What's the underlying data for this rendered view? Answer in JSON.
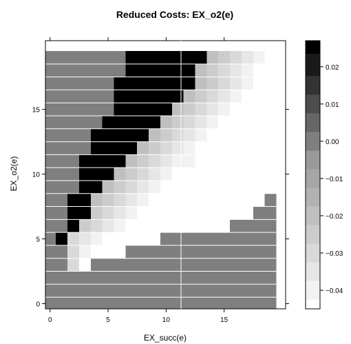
{
  "chart_data": {
    "type": "heatmap",
    "title": "Reduced Costs: EX_o2(e)",
    "xlabel": "EX_succ(e)",
    "ylabel": "EX_o2(e)",
    "xlim": [
      -0.4,
      20.3
    ],
    "ylim": [
      -0.4,
      20.3
    ],
    "x_ticks": [
      0,
      5,
      10,
      15
    ],
    "y_ticks": [
      0,
      5,
      10,
      15
    ],
    "colorbar": {
      "range": [
        -0.045,
        0.027
      ],
      "levels": [
        -0.045,
        -0.04,
        -0.035,
        -0.03,
        -0.025,
        -0.02,
        -0.015,
        -0.01,
        -0.005,
        0.0,
        0.005,
        0.01,
        0.015,
        0.02,
        0.027
      ],
      "colors": [
        "#ffffff",
        "#f2f2f2",
        "#e6e6e6",
        "#d9d9d9",
        "#cccccc",
        "#bfbfbf",
        "#b2b2b2",
        "#a6a6a6",
        "#999999",
        "#7f7f7f",
        "#666666",
        "#4d4d4d",
        "#333333",
        "#1a1a1a",
        "#000000"
      ],
      "tick_values": [
        0.02,
        0.01,
        0.0,
        -0.01,
        -0.02,
        -0.03,
        -0.04
      ],
      "tick_labels": [
        "0.02",
        "0.01",
        "0.00",
        "−0.01",
        "−0.02",
        "−0.03",
        "−0.04"
      ]
    },
    "grid": false,
    "cell_values": [
      [
        0.0,
        0.0,
        0.0,
        0.0,
        0.0,
        0.0,
        0.0,
        0.0,
        0.0,
        0.0,
        0.0,
        0.0,
        0.0,
        0.0,
        0.0,
        0.0,
        0.0,
        0.0,
        0.0,
        0.0
      ],
      [
        0.0,
        0.0,
        0.0,
        0.0,
        0.0,
        0.0,
        0.0,
        0.0,
        0.0,
        0.0,
        0.0,
        0.0,
        0.0,
        0.0,
        0.0,
        0.0,
        0.0,
        0.0,
        0.0,
        0.0
      ],
      [
        0.0,
        0.0,
        0.0,
        0.0,
        0.0,
        0.0,
        0.0,
        0.0,
        0.0,
        0.0,
        0.0,
        0.0,
        0.0,
        0.0,
        0.0,
        0.0,
        0.0,
        0.0,
        0.0,
        0.0
      ],
      [
        0.0,
        0.0,
        -0.03,
        -0.045,
        0.0,
        0.0,
        0.0,
        0.0,
        0.0,
        0.0,
        0.0,
        0.0,
        0.0,
        0.0,
        0.0,
        0.0,
        0.0,
        0.0,
        0.0,
        0.0
      ],
      [
        0.0,
        0.0,
        -0.03,
        -0.04,
        -0.045,
        -0.045,
        -0.045,
        0.0,
        0.0,
        0.0,
        0.0,
        0.0,
        0.0,
        0.0,
        0.0,
        0.0,
        0.0,
        0.0,
        0.0,
        0.0
      ],
      [
        0.0,
        0.027,
        -0.03,
        -0.035,
        -0.04,
        -0.045,
        -0.045,
        -0.045,
        -0.045,
        -0.045,
        0.0,
        0.0,
        0.0,
        0.0,
        0.0,
        0.0,
        0.0,
        0.0,
        0.0,
        0.0
      ],
      [
        0.0,
        0.0,
        0.027,
        -0.025,
        -0.03,
        -0.035,
        -0.04,
        -0.045,
        -0.045,
        -0.045,
        -0.045,
        -0.045,
        -0.045,
        -0.045,
        -0.045,
        -0.045,
        0.0,
        0.0,
        0.0,
        0.0
      ],
      [
        0.0,
        0.0,
        0.027,
        0.027,
        -0.025,
        -0.03,
        -0.035,
        -0.04,
        -0.045,
        -0.045,
        -0.045,
        -0.045,
        -0.045,
        -0.045,
        -0.045,
        -0.045,
        -0.045,
        -0.045,
        0.0,
        0.0
      ],
      [
        0.0,
        0.0,
        0.027,
        0.027,
        -0.02,
        -0.025,
        -0.03,
        -0.035,
        -0.04,
        -0.045,
        -0.045,
        -0.045,
        -0.045,
        -0.045,
        -0.045,
        -0.045,
        -0.045,
        -0.045,
        -0.045,
        0.0
      ],
      [
        0.0,
        0.0,
        0.0,
        0.027,
        0.027,
        -0.02,
        -0.025,
        -0.03,
        -0.035,
        -0.04,
        -0.045,
        -0.045,
        -0.045,
        -0.045,
        -0.045,
        -0.045,
        -0.045,
        -0.045,
        -0.045,
        -0.045
      ],
      [
        0.0,
        0.0,
        0.0,
        0.027,
        0.027,
        0.027,
        -0.02,
        -0.025,
        -0.03,
        -0.035,
        -0.04,
        -0.045,
        -0.045,
        -0.045,
        -0.045,
        -0.045,
        -0.045,
        -0.045,
        -0.045,
        -0.045
      ],
      [
        0.0,
        0.0,
        0.0,
        0.027,
        0.027,
        0.027,
        0.027,
        -0.02,
        -0.025,
        -0.03,
        -0.035,
        -0.04,
        -0.04,
        -0.045,
        -0.045,
        -0.045,
        -0.045,
        -0.045,
        -0.045,
        -0.045
      ],
      [
        0.0,
        0.0,
        0.0,
        0.0,
        0.027,
        0.027,
        0.027,
        0.027,
        -0.02,
        -0.025,
        -0.03,
        -0.035,
        -0.04,
        -0.045,
        -0.045,
        -0.045,
        -0.045,
        -0.045,
        -0.045,
        -0.045
      ],
      [
        0.0,
        0.0,
        0.0,
        0.0,
        0.027,
        0.027,
        0.027,
        0.027,
        0.027,
        -0.02,
        -0.025,
        -0.03,
        -0.035,
        -0.04,
        -0.045,
        -0.045,
        -0.045,
        -0.045,
        -0.045,
        -0.045
      ],
      [
        0.0,
        0.0,
        0.0,
        0.0,
        0.0,
        0.027,
        0.027,
        0.027,
        0.027,
        0.027,
        -0.02,
        -0.025,
        -0.03,
        -0.035,
        -0.04,
        -0.045,
        -0.045,
        -0.045,
        -0.045,
        -0.045
      ],
      [
        0.0,
        0.0,
        0.0,
        0.0,
        0.0,
        0.0,
        0.027,
        0.027,
        0.027,
        0.027,
        0.027,
        -0.02,
        -0.025,
        -0.03,
        -0.035,
        -0.04,
        -0.045,
        -0.045,
        -0.045,
        -0.045
      ],
      [
        0.0,
        0.0,
        0.0,
        0.0,
        0.0,
        0.0,
        0.027,
        0.027,
        0.027,
        0.027,
        0.027,
        0.027,
        -0.02,
        -0.025,
        -0.03,
        -0.035,
        -0.04,
        -0.045,
        -0.045,
        -0.045
      ],
      [
        0.0,
        0.0,
        0.0,
        0.0,
        0.0,
        0.0,
        0.027,
        0.027,
        0.027,
        0.027,
        0.027,
        0.027,
        0.027,
        -0.02,
        -0.025,
        -0.03,
        -0.035,
        -0.04,
        -0.045,
        -0.045
      ],
      [
        0.0,
        0.0,
        0.0,
        0.0,
        0.0,
        0.0,
        0.0,
        0.027,
        0.027,
        0.027,
        0.027,
        0.027,
        0.027,
        -0.02,
        -0.025,
        -0.03,
        -0.035,
        -0.04,
        -0.045,
        -0.045
      ],
      [
        0.0,
        0.0,
        0.0,
        0.0,
        0.0,
        0.0,
        0.0,
        0.027,
        0.027,
        0.027,
        0.027,
        0.027,
        0.027,
        0.027,
        -0.02,
        -0.025,
        -0.03,
        -0.035,
        -0.04,
        -0.045
      ]
    ]
  }
}
